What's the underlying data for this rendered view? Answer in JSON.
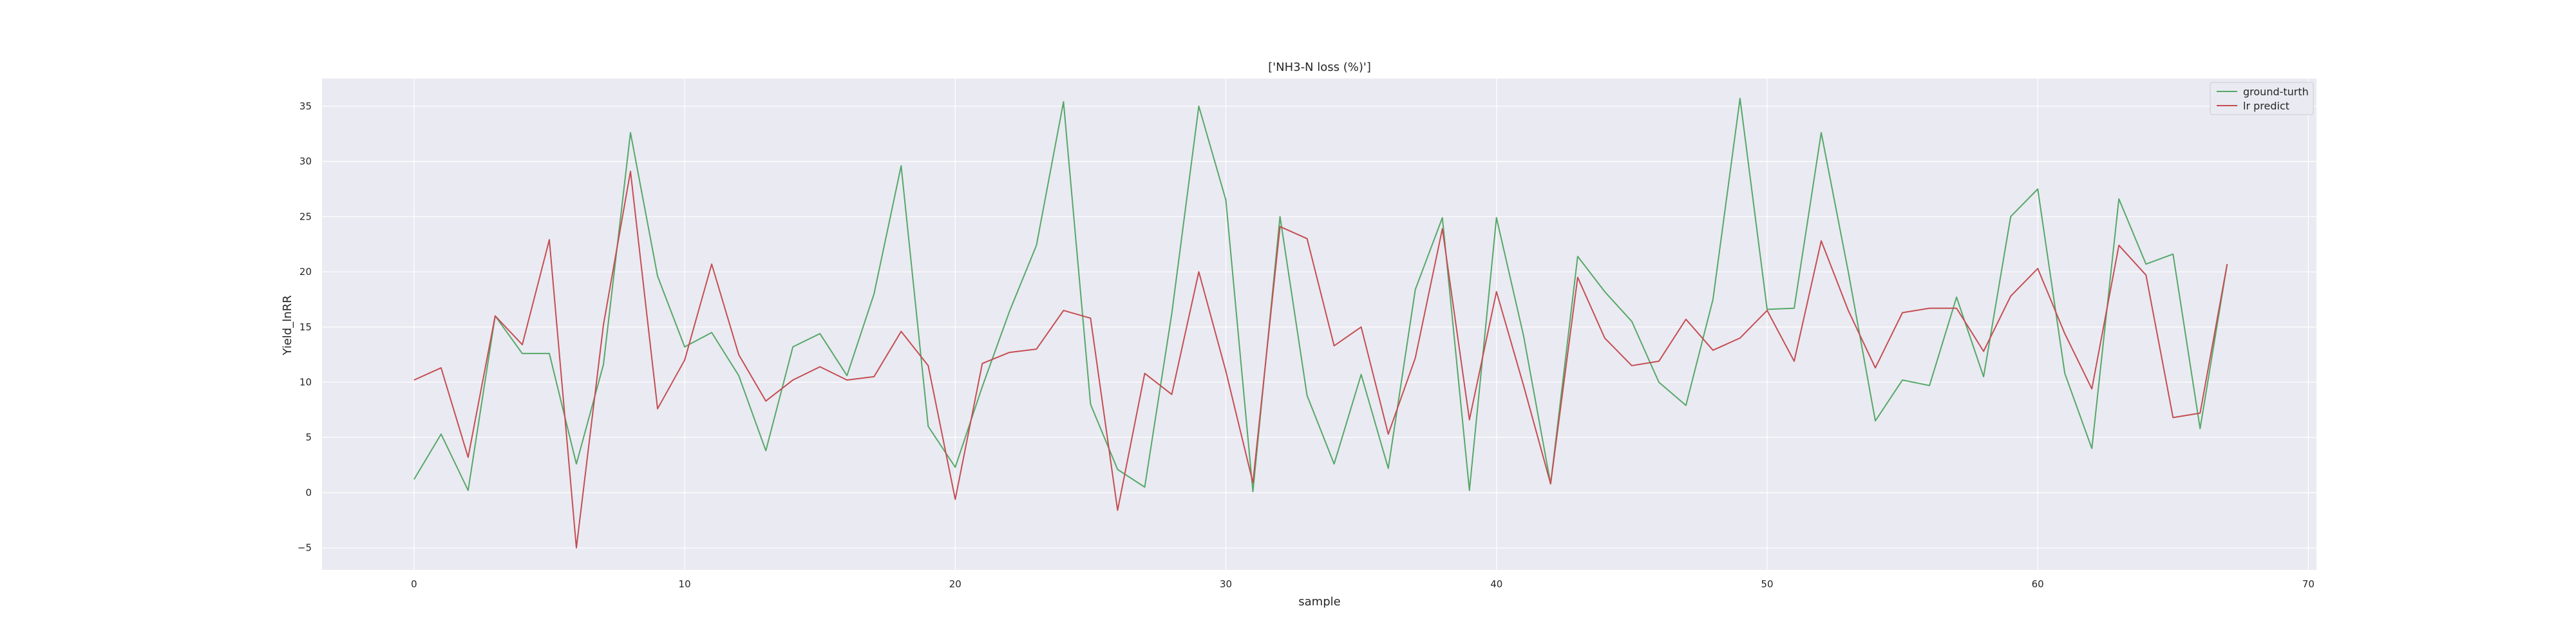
{
  "chart_data": {
    "type": "line",
    "title": "['NH3-N loss (%)']",
    "xlabel": "sample",
    "ylabel": "Yield_lnRR",
    "xlim": [
      -3.4,
      70.3
    ],
    "ylim": [
      -7.0,
      37.5
    ],
    "xticks": [
      0,
      10,
      20,
      30,
      40,
      50,
      60,
      70
    ],
    "yticks": [
      -5,
      0,
      5,
      10,
      15,
      20,
      25,
      30,
      35
    ],
    "grid": true,
    "legend_position": "top-right",
    "series": [
      {
        "name": "ground-turth",
        "color": "#55a868",
        "values": [
          1.2,
          5.3,
          0.2,
          16.0,
          12.6,
          12.6,
          2.6,
          11.6,
          32.6,
          19.6,
          13.2,
          14.5,
          10.6,
          3.8,
          13.2,
          14.4,
          10.6,
          18.0,
          29.6,
          6.0,
          2.3,
          9.6,
          16.4,
          22.4,
          35.4,
          8.0,
          2.1,
          0.5,
          16.2,
          35.0,
          26.5,
          0.1,
          25.0,
          8.8,
          2.6,
          10.7,
          2.2,
          18.4,
          24.9,
          0.2,
          24.9,
          14.2,
          0.8,
          21.4,
          18.2,
          15.5,
          10.0,
          7.9,
          17.5,
          35.7,
          16.6,
          16.7,
          32.6,
          20.0,
          6.5,
          10.2,
          9.7,
          17.7,
          10.5,
          25.0,
          27.5,
          10.8,
          4.0,
          26.6,
          20.7,
          21.6,
          5.8,
          20.7
        ]
      },
      {
        "name": "lr predict",
        "color": "#c44e52",
        "values": [
          10.2,
          11.3,
          3.2,
          16.0,
          13.4,
          22.9,
          -5.0,
          15.2,
          29.1,
          7.6,
          12.0,
          20.7,
          12.5,
          8.3,
          10.2,
          11.4,
          10.2,
          10.5,
          14.6,
          11.5,
          -0.6,
          11.7,
          12.7,
          13.0,
          16.5,
          15.8,
          -1.6,
          10.8,
          8.9,
          20.0,
          11.0,
          0.9,
          24.1,
          23.0,
          13.3,
          15.0,
          5.3,
          12.2,
          23.9,
          6.6,
          18.2,
          9.7,
          0.8,
          19.5,
          14.0,
          11.5,
          11.9,
          15.7,
          12.9,
          14.0,
          16.5,
          11.9,
          22.8,
          16.5,
          11.3,
          16.3,
          16.7,
          16.7,
          12.8,
          17.8,
          20.3,
          14.4,
          9.4,
          22.4,
          19.7,
          6.8,
          7.2,
          20.7
        ]
      }
    ]
  }
}
